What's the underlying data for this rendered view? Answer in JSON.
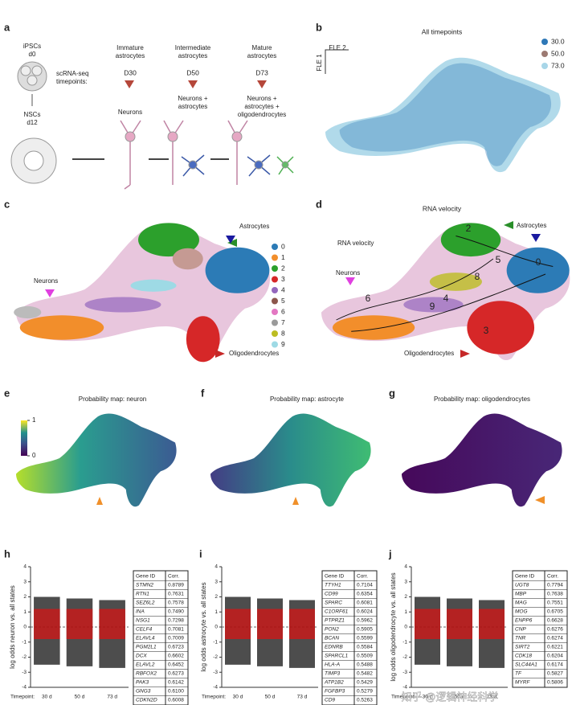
{
  "panel_a": {
    "label": "a",
    "ipsc": [
      "iPSCs",
      "d0"
    ],
    "nsc": [
      "NSCs",
      "d12"
    ],
    "timepoints": [
      "scRNA-seq",
      "timepoints:"
    ],
    "stages": [
      {
        "title": [
          "Immature",
          "astrocytes"
        ],
        "day": "D30",
        "cells": [
          "Neurons"
        ]
      },
      {
        "title": [
          "Intermediate",
          "astrocytes"
        ],
        "day": "D50",
        "cells": [
          "Neurons +",
          "astrocytes"
        ]
      },
      {
        "title": [
          "Mature",
          "astrocytes"
        ],
        "day": "D73",
        "cells": [
          "Neurons +",
          "astrocytes +",
          "oligodendrocytes"
        ]
      }
    ]
  },
  "panel_b": {
    "label": "b",
    "title": "All timepoints",
    "x_axis": "FLE 2",
    "y_axis": "FLE 1",
    "legend": [
      {
        "name": "30.0",
        "color": "#2e78b7"
      },
      {
        "name": "50.0",
        "color": "#9c7a72"
      },
      {
        "name": "73.0",
        "color": "#a8d6e8"
      }
    ]
  },
  "panel_c": {
    "label": "c",
    "legend": [
      {
        "name": "0",
        "color": "#2c7bb6"
      },
      {
        "name": "1",
        "color": "#f28e2b"
      },
      {
        "name": "2",
        "color": "#2ca02c"
      },
      {
        "name": "3",
        "color": "#d62728"
      },
      {
        "name": "4",
        "color": "#9467bd"
      },
      {
        "name": "5",
        "color": "#8c564b"
      },
      {
        "name": "6",
        "color": "#e377c2"
      },
      {
        "name": "7",
        "color": "#9a9a9a"
      },
      {
        "name": "8",
        "color": "#bcbd22"
      },
      {
        "name": "9",
        "color": "#9edae5"
      }
    ],
    "annotations": [
      "Astrocytes",
      "Neurons",
      "Oligodendrocytes"
    ]
  },
  "panel_d": {
    "label": "d",
    "title": "RNA velocity",
    "inset_title": "RNA velocity",
    "annotations": [
      "Astrocytes",
      "Neurons",
      "Oligodendrocytes"
    ],
    "clusters": [
      "2",
      "5",
      "0",
      "8",
      "6",
      "9",
      "4",
      "3"
    ]
  },
  "panel_e": {
    "label": "e",
    "title": "Probability map: neuron",
    "colorbar_ticks": [
      1,
      0
    ]
  },
  "panel_f": {
    "label": "f",
    "title": "Probability map: astrocyte"
  },
  "panel_g": {
    "label": "g",
    "title": "Probability map: oligodendrocytes"
  },
  "panel_h": {
    "label": "h",
    "y_label": "log odds neuron vs. all states",
    "ylim": [
      -4,
      4
    ],
    "yticks": [
      -4,
      -3,
      -2,
      -1,
      0,
      1,
      2,
      3,
      4
    ],
    "x_label": "Timepoint:",
    "categories": [
      "30 d",
      "50 d",
      "73 d"
    ],
    "table": {
      "header": [
        "Gene ID",
        "Corr."
      ],
      "rows": [
        [
          "STMN2",
          "0.8789"
        ],
        [
          "RTN1",
          "0.7631"
        ],
        [
          "SEZ6L2",
          "0.7578"
        ],
        [
          "INA",
          "0.7490"
        ],
        [
          "NSG1",
          "0.7298"
        ],
        [
          "CELF4",
          "0.7081"
        ],
        [
          "ELAVL4",
          "0.7009"
        ],
        [
          "PGM2L1",
          "0.6723"
        ],
        [
          "DCX",
          "0.6602"
        ],
        [
          "ELAVL2",
          "0.6452"
        ],
        [
          "RBFOX2",
          "0.6273"
        ],
        [
          "PAK3",
          "0.6142"
        ],
        [
          "GNG3",
          "0.6100"
        ],
        [
          "CDKN2D",
          "0.6008"
        ]
      ]
    }
  },
  "panel_i": {
    "label": "i",
    "y_label": "log odds astrocyte vs. all states",
    "ylim": [
      -4,
      4
    ],
    "yticks": [
      -4,
      -3,
      -2,
      -1,
      0,
      1,
      2,
      3,
      4
    ],
    "x_label": "Timepoint:",
    "categories": [
      "30 d",
      "50 d",
      "73 d"
    ],
    "table": {
      "header": [
        "Gene ID",
        "Corr."
      ],
      "rows": [
        [
          "TTYH1",
          "0.7104"
        ],
        [
          "CD99",
          "0.6354"
        ],
        [
          "SPARC",
          "0.6081"
        ],
        [
          "C1ORF61",
          "0.6024"
        ],
        [
          "PTPRZ1",
          "0.5962"
        ],
        [
          "PON2",
          "0.5905"
        ],
        [
          "BCAN",
          "0.5599"
        ],
        [
          "EDNRB",
          "0.5584"
        ],
        [
          "SPARCL1",
          "0.5509"
        ],
        [
          "HLA-A",
          "0.5488"
        ],
        [
          "TIMP3",
          "0.5482"
        ],
        [
          "ATP1B2",
          "0.5429"
        ],
        [
          "FGFBP3",
          "0.5279"
        ],
        [
          "CD9",
          "0.5263"
        ]
      ]
    }
  },
  "panel_j": {
    "label": "j",
    "y_label": "log odds oligodendrocyte vs. all states",
    "ylim": [
      -4,
      4
    ],
    "yticks": [
      -4,
      -3,
      -2,
      -1,
      0,
      1,
      2,
      3,
      4
    ],
    "x_label": "Timepoint:",
    "categories": [
      "30 d",
      "50 d",
      "73 d"
    ],
    "table": {
      "header": [
        "Gene ID",
        "Corr."
      ],
      "rows": [
        [
          "UGT8",
          "0.7794"
        ],
        [
          "MBP",
          "0.7638"
        ],
        [
          "MAG",
          "0.7551"
        ],
        [
          "MOG",
          "0.6705"
        ],
        [
          "ENPP6",
          "0.6628"
        ],
        [
          "CNP",
          "0.6276"
        ],
        [
          "TNR",
          "0.6274"
        ],
        [
          "SIRT2",
          "0.6221"
        ],
        [
          "CDK18",
          "0.6204"
        ],
        [
          "SLC44A1",
          "0.6174"
        ],
        [
          "TF",
          "0.5827"
        ],
        [
          "MYRF",
          "0.5806"
        ]
      ]
    }
  },
  "watermark": "知乎 @逻辑神经科学"
}
